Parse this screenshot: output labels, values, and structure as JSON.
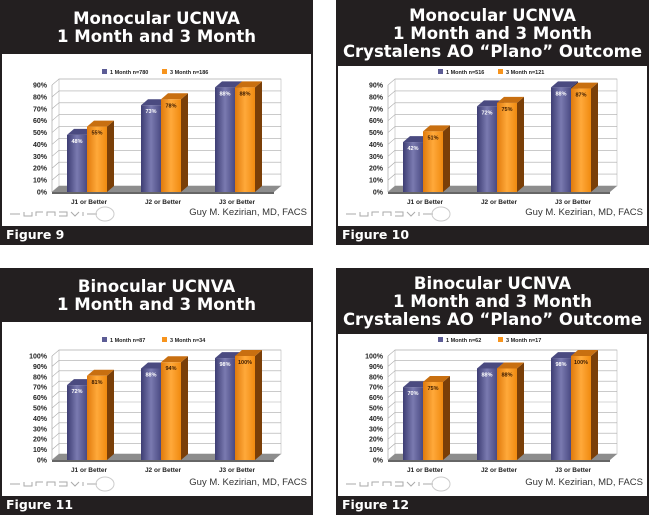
{
  "colors": {
    "header_bg": "#231f20",
    "series_1": "#5c5c95",
    "series_2": "#f7941d"
  },
  "author": "Guy M. Kezirian, MD, FACS",
  "logo_text": "SURGIVISION",
  "chart_data": [
    {
      "type": "bar",
      "figure_label": "Figure 9",
      "title_lines": [
        "Monocular UCNVA",
        "1 Month and 3 Month"
      ],
      "categories": [
        "J1 or Better",
        "J2 or Better",
        "J3 or Better"
      ],
      "series": [
        {
          "name": "1 Month n=780",
          "values": [
            48,
            73,
            88
          ],
          "labels": [
            "48%",
            "73%",
            "88%"
          ]
        },
        {
          "name": "3 Month n=186",
          "values": [
            55,
            78,
            88
          ],
          "labels": [
            "55%",
            "78%",
            "88%"
          ]
        }
      ],
      "yticks": [
        "0%",
        "10%",
        "20%",
        "30%",
        "40%",
        "50%",
        "60%",
        "70%",
        "80%",
        "90%"
      ],
      "ylim": [
        0,
        90
      ],
      "grid": true,
      "legend": "top"
    },
    {
      "type": "bar",
      "figure_label": "Figure 10",
      "title_lines": [
        "Monocular UCNVA",
        "1 Month and 3 Month",
        "Crystalens AO “Plano” Outcome"
      ],
      "categories": [
        "J1 or Better",
        "J2 or Better",
        "J3 or Better"
      ],
      "series": [
        {
          "name": "1 Month n=516",
          "values": [
            42,
            72,
            88
          ],
          "labels": [
            "42%",
            "72%",
            "88%"
          ]
        },
        {
          "name": "3 Month n=121",
          "values": [
            51,
            75,
            87
          ],
          "labels": [
            "51%",
            "75%",
            "87%"
          ]
        }
      ],
      "yticks": [
        "0%",
        "10%",
        "20%",
        "30%",
        "40%",
        "50%",
        "60%",
        "70%",
        "80%",
        "90%"
      ],
      "ylim": [
        0,
        90
      ],
      "grid": true,
      "legend": "top"
    },
    {
      "type": "bar",
      "figure_label": "Figure 11",
      "title_lines": [
        "Binocular UCNVA",
        "1 Month and 3 Month"
      ],
      "categories": [
        "J1 or Better",
        "J2 or Better",
        "J3 or Better"
      ],
      "series": [
        {
          "name": "1 Month n=87",
          "values": [
            72,
            88,
            98
          ],
          "labels": [
            "72%",
            "88%",
            "98%"
          ]
        },
        {
          "name": "3 Month n=34",
          "values": [
            81,
            94,
            100
          ],
          "labels": [
            "81%",
            "94%",
            "100%"
          ]
        }
      ],
      "yticks": [
        "0%",
        "10%",
        "20%",
        "30%",
        "40%",
        "50%",
        "60%",
        "70%",
        "80%",
        "90%",
        "100%"
      ],
      "ylim": [
        0,
        100
      ],
      "grid": true,
      "legend": "top"
    },
    {
      "type": "bar",
      "figure_label": "Figure 12",
      "title_lines": [
        "Binocular UCNVA",
        "1 Month and 3 Month",
        "Crystalens AO “Plano” Outcome"
      ],
      "categories": [
        "J1 or Better",
        "J2 or Better",
        "J3 or Better"
      ],
      "series": [
        {
          "name": "1 Month n=62",
          "values": [
            70,
            88,
            98
          ],
          "labels": [
            "70%",
            "88%",
            "98%"
          ]
        },
        {
          "name": "3 Month n=17",
          "values": [
            75,
            88,
            100
          ],
          "labels": [
            "75%",
            "88%",
            "100%"
          ]
        }
      ],
      "yticks": [
        "0%",
        "10%",
        "20%",
        "30%",
        "40%",
        "50%",
        "60%",
        "70%",
        "80%",
        "90%",
        "100%"
      ],
      "ylim": [
        0,
        100
      ],
      "grid": true,
      "legend": "top"
    }
  ]
}
